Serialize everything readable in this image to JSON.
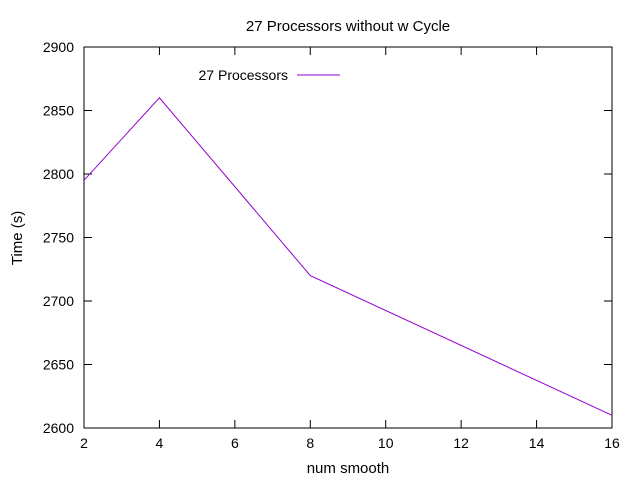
{
  "chart_data": {
    "type": "line",
    "title": "27 Processors without w Cycle",
    "xlabel": "num smooth",
    "ylabel": "Time (s)",
    "xlim": [
      2,
      16
    ],
    "ylim": [
      2600,
      2900
    ],
    "xticks": [
      2,
      4,
      6,
      8,
      10,
      12,
      14,
      16
    ],
    "yticks": [
      2600,
      2650,
      2700,
      2750,
      2800,
      2850,
      2900
    ],
    "grid": false,
    "legend_position": "top-left",
    "series": [
      {
        "name": "27 Processors",
        "color": "#9400d3",
        "x": [
          2,
          4,
          8,
          16
        ],
        "y": [
          2795,
          2860,
          2720,
          2610
        ]
      }
    ]
  }
}
